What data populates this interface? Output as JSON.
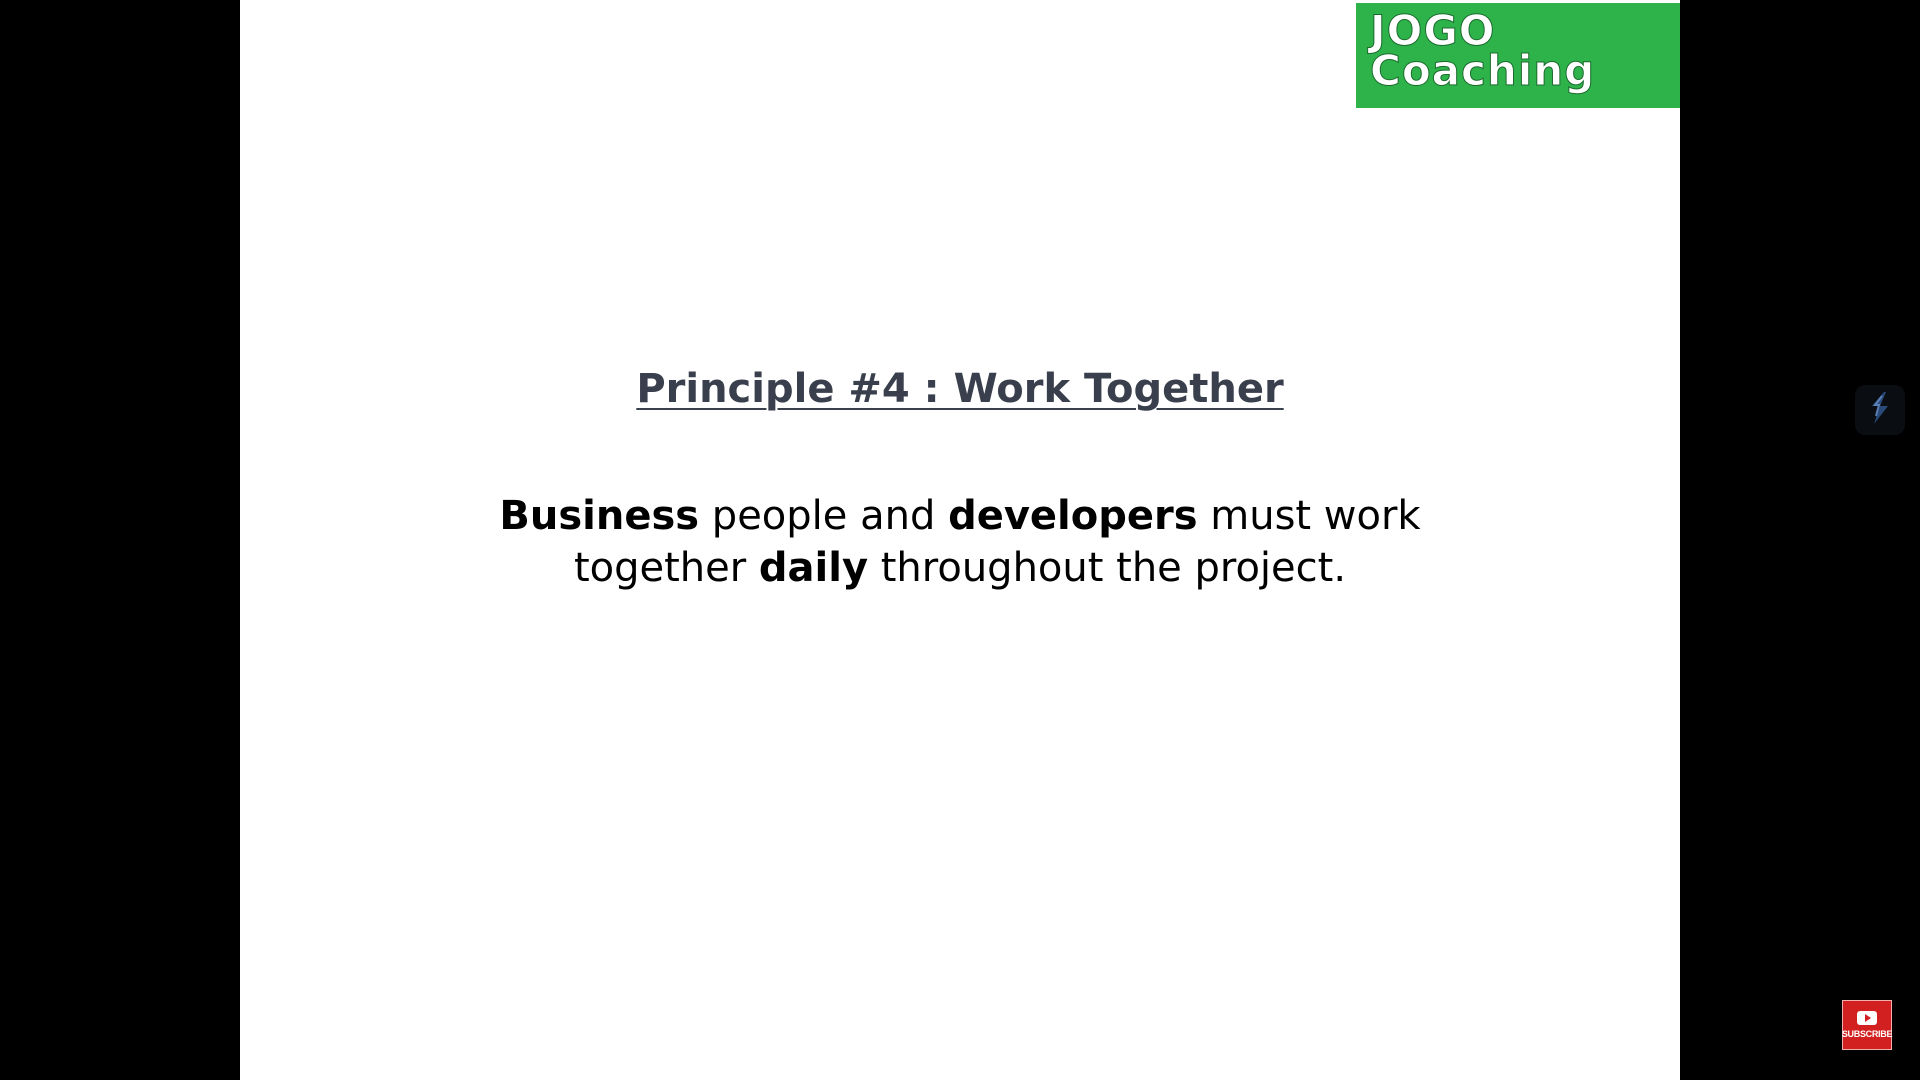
{
  "logo": {
    "line1": "JOGO",
    "line2": "Coaching",
    "color": "#2db34a"
  },
  "slide": {
    "title": "Principle #4 :  Work Together",
    "body": {
      "w1": "Business",
      "t1": " people and ",
      "w2": "developers",
      "t2": " must work",
      "t3": "together ",
      "w3": "daily",
      "t4": " throughout the project."
    }
  },
  "overlay": {
    "side_icon": "feather-icon",
    "subscribe_label": "SUBSCRIBE",
    "subscribe_color": "#d21f1f"
  }
}
